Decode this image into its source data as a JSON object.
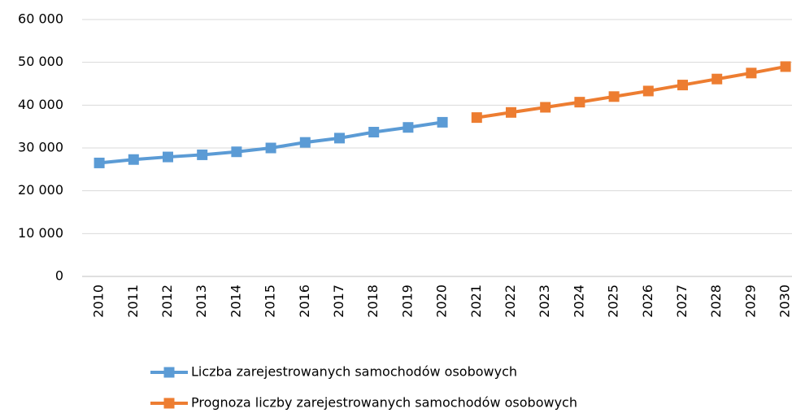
{
  "chart_data": {
    "type": "line",
    "categories": [
      "2010",
      "2011",
      "2012",
      "2013",
      "2014",
      "2015",
      "2016",
      "2017",
      "2018",
      "2019",
      "2020",
      "2021",
      "2022",
      "2023",
      "2024",
      "2025",
      "2026",
      "2027",
      "2028",
      "2029",
      "2030"
    ],
    "series": [
      {
        "name": "Liczba zarejestrowanych samochodów osobowych",
        "color": "#5b9bd5",
        "values": [
          26500,
          27300,
          27900,
          28400,
          29100,
          30000,
          31300,
          32300,
          33700,
          34800,
          36000,
          null,
          null,
          null,
          null,
          null,
          null,
          null,
          null,
          null,
          null
        ]
      },
      {
        "name": "Prognoza liczby zarejestrowanych samochodów osobowych",
        "color": "#ed7d31",
        "values": [
          null,
          null,
          null,
          null,
          null,
          null,
          null,
          null,
          null,
          null,
          null,
          37100,
          38300,
          39500,
          40700,
          42000,
          43300,
          44700,
          46100,
          47500,
          49000
        ]
      }
    ],
    "ylim": [
      0,
      60000
    ],
    "yticks": [
      0,
      {
        "value": 10000,
        "label": "10 000"
      },
      {
        "value": 20000,
        "label": "20 000"
      },
      {
        "value": 30000,
        "label": "30 000"
      },
      {
        "value": 40000,
        "label": "40 000"
      },
      {
        "value": 50000,
        "label": "50 000"
      },
      {
        "value": 60000,
        "label": "60 000"
      }
    ],
    "grid": true,
    "legend": "bottom"
  }
}
